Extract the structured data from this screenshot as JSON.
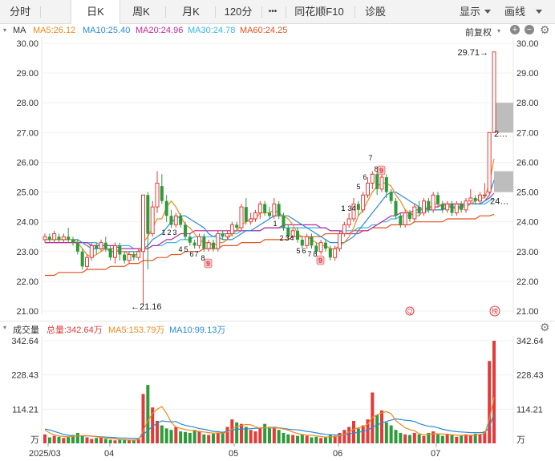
{
  "tabs": [
    {
      "label": "分时",
      "active": false
    },
    {
      "label": "日K",
      "active": true
    },
    {
      "label": "周K",
      "active": false
    },
    {
      "label": "月K",
      "active": false
    },
    {
      "label": "120分",
      "active": false
    },
    {
      "label": "•••",
      "active": false
    },
    {
      "label": "同花顺F10",
      "active": false
    },
    {
      "label": "诊股",
      "active": false
    }
  ],
  "right_tabs": {
    "display": "显示",
    "drawing": "画线"
  },
  "indicator": {
    "name": "MA",
    "ma5": "MA5:26.12",
    "ma10": "MA10:25.40",
    "ma20": "MA20:24.96",
    "ma30": "MA30:24.78",
    "ma60": "MA60:24.25",
    "adjust": "前复权"
  },
  "volume_header": {
    "name": "成交量",
    "total": "总量:342.64万",
    "ma5": "MA5:153.79万",
    "ma10": "MA10:99.13万"
  },
  "colors": {
    "up": "#e23b3b",
    "down": "#2e9a3a",
    "ma5": "#f08a1c",
    "ma10": "#2a8ad8",
    "ma20": "#c0279c",
    "ma30": "#35b7e8",
    "ma60": "#e0531d",
    "gap": "#bdbdbd"
  },
  "annotations": {
    "high": "29.71→",
    "low": "←21.16",
    "last_close": "2…",
    "last_low": "24…",
    "badge_q": "Q",
    "badge_bang": "榜",
    "badge_9": "9"
  },
  "seq_labels": [
    "1",
    "2",
    "3",
    "4",
    "5",
    "6",
    "7",
    "8",
    "9"
  ],
  "months": [
    "2025/03",
    "04",
    "05",
    "06",
    "07"
  ],
  "vol_unit": "万",
  "chart_data": {
    "type": "candlestick",
    "ylim": [
      21,
      30
    ],
    "yticks": [
      "30.00",
      "29.00",
      "28.00",
      "27.00",
      "26.00",
      "25.00",
      "24.00",
      "23.00",
      "22.00",
      "21.00"
    ],
    "vol_ticks": [
      "342.64",
      "228.43",
      "114.21"
    ],
    "candles": [
      [
        23.4,
        23.5,
        23.6,
        23.3
      ],
      [
        23.5,
        23.4,
        23.6,
        23.3
      ],
      [
        23.4,
        23.6,
        23.7,
        23.3
      ],
      [
        23.5,
        23.4,
        23.6,
        23.3
      ],
      [
        23.4,
        23.5,
        23.6,
        23.3
      ],
      [
        23.5,
        23.4,
        23.8,
        23.3
      ],
      [
        23.4,
        23.3,
        23.5,
        23.2
      ],
      [
        23.3,
        23.0,
        23.4,
        22.9
      ],
      [
        23.0,
        22.5,
        23.1,
        22.4
      ],
      [
        22.5,
        22.8,
        22.9,
        22.4
      ],
      [
        22.8,
        23.2,
        23.3,
        22.7
      ],
      [
        23.2,
        23.1,
        23.3,
        22.9
      ],
      [
        23.1,
        23.3,
        23.4,
        23.0
      ],
      [
        23.3,
        23.1,
        23.5,
        23.0
      ],
      [
        23.1,
        22.8,
        23.2,
        22.7
      ],
      [
        22.8,
        23.2,
        23.3,
        22.6
      ],
      [
        23.2,
        22.9,
        23.3,
        22.7
      ],
      [
        22.9,
        22.7,
        23.0,
        22.6
      ],
      [
        22.7,
        22.9,
        23.0,
        22.6
      ],
      [
        22.9,
        22.8,
        23.0,
        22.7
      ],
      [
        22.8,
        23.0,
        23.1,
        22.7
      ],
      [
        23.0,
        24.9,
        24.9,
        21.16
      ],
      [
        24.9,
        23.6,
        25.0,
        22.4
      ],
      [
        23.6,
        24.5,
        24.7,
        23.5
      ],
      [
        24.5,
        25.3,
        25.7,
        24.3
      ],
      [
        25.2,
        24.7,
        25.6,
        24.6
      ],
      [
        24.7,
        24.2,
        24.9,
        24.0
      ],
      [
        24.2,
        23.9,
        24.4,
        23.8
      ],
      [
        23.9,
        24.2,
        24.3,
        23.8
      ],
      [
        24.2,
        23.9,
        24.3,
        23.8
      ],
      [
        23.9,
        23.5,
        24.0,
        23.4
      ],
      [
        23.5,
        23.3,
        23.6,
        23.2
      ],
      [
        23.3,
        23.2,
        23.4,
        23.1
      ],
      [
        23.2,
        23.5,
        23.6,
        23.1
      ],
      [
        23.5,
        23.1,
        23.6,
        23.0
      ],
      [
        23.1,
        23.3,
        23.4,
        23.0
      ],
      [
        23.3,
        23.1,
        23.4,
        23.0
      ],
      [
        23.1,
        23.6,
        23.7,
        23.0
      ],
      [
        23.6,
        23.5,
        23.7,
        23.4
      ],
      [
        23.5,
        23.6,
        23.7,
        23.4
      ],
      [
        23.6,
        23.9,
        24.0,
        23.5
      ],
      [
        23.9,
        23.8,
        24.0,
        23.7
      ],
      [
        23.8,
        24.5,
        24.6,
        23.7
      ],
      [
        24.5,
        24.0,
        24.8,
        23.9
      ],
      [
        24.0,
        24.1,
        24.3,
        23.9
      ],
      [
        24.1,
        24.3,
        24.4,
        24.0
      ],
      [
        24.3,
        24.6,
        24.7,
        24.1
      ],
      [
        24.6,
        24.3,
        24.7,
        24.2
      ],
      [
        24.3,
        24.2,
        24.5,
        24.1
      ],
      [
        24.2,
        24.6,
        24.8,
        24.1
      ],
      [
        24.6,
        24.2,
        24.7,
        24.1
      ],
      [
        24.2,
        23.8,
        24.3,
        23.7
      ],
      [
        23.8,
        23.5,
        23.9,
        23.4
      ],
      [
        23.5,
        23.7,
        23.8,
        23.4
      ],
      [
        23.7,
        23.4,
        23.8,
        23.3
      ],
      [
        23.4,
        23.2,
        23.5,
        23.1
      ],
      [
        23.2,
        23.5,
        23.6,
        23.1
      ],
      [
        23.5,
        23.2,
        23.6,
        23.1
      ],
      [
        23.2,
        23.0,
        23.3,
        22.9
      ],
      [
        23.0,
        23.3,
        23.4,
        22.9
      ],
      [
        23.3,
        23.1,
        23.4,
        23.0
      ],
      [
        23.1,
        22.8,
        23.2,
        22.7
      ],
      [
        22.8,
        23.1,
        23.2,
        22.7
      ],
      [
        23.1,
        23.6,
        23.7,
        23.0
      ],
      [
        23.6,
        23.9,
        24.0,
        23.5
      ],
      [
        23.9,
        24.1,
        24.3,
        23.8
      ],
      [
        24.1,
        24.6,
        24.8,
        24.0
      ],
      [
        24.6,
        24.4,
        24.7,
        24.2
      ],
      [
        24.4,
        24.9,
        25.0,
        24.3
      ],
      [
        24.9,
        25.3,
        25.5,
        24.8
      ],
      [
        25.3,
        25.6,
        25.7,
        25.1
      ],
      [
        25.6,
        25.1,
        25.7,
        24.9
      ],
      [
        25.1,
        25.5,
        25.6,
        25.0
      ],
      [
        25.5,
        25.0,
        25.6,
        24.8
      ],
      [
        25.0,
        24.7,
        25.1,
        24.6
      ],
      [
        24.7,
        24.2,
        24.8,
        24.1
      ],
      [
        24.2,
        23.9,
        24.3,
        23.8
      ],
      [
        23.9,
        24.3,
        24.4,
        23.8
      ],
      [
        24.3,
        24.1,
        24.4,
        24.0
      ],
      [
        24.1,
        24.5,
        24.6,
        24.0
      ],
      [
        24.5,
        24.3,
        24.7,
        24.2
      ],
      [
        24.3,
        24.7,
        24.8,
        24.2
      ],
      [
        24.7,
        24.4,
        24.8,
        24.3
      ],
      [
        24.4,
        24.9,
        25.0,
        24.3
      ],
      [
        24.9,
        24.6,
        25.0,
        24.5
      ],
      [
        24.6,
        24.4,
        24.7,
        24.3
      ],
      [
        24.4,
        24.6,
        24.7,
        24.3
      ],
      [
        24.6,
        24.3,
        24.7,
        24.2
      ],
      [
        24.3,
        24.6,
        24.7,
        24.2
      ],
      [
        24.6,
        24.4,
        24.7,
        24.3
      ],
      [
        24.4,
        24.7,
        24.8,
        24.3
      ],
      [
        24.7,
        24.8,
        25.1,
        24.6
      ],
      [
        24.8,
        24.7,
        24.9,
        24.6
      ],
      [
        24.7,
        24.9,
        25.0,
        24.6
      ],
      [
        24.9,
        24.9,
        25.3,
        24.8
      ],
      [
        25.0,
        27.0,
        27.0,
        24.9
      ],
      [
        27.0,
        29.71,
        29.71,
        27.0
      ]
    ],
    "ma5": [
      23.4,
      23.4,
      23.4,
      23.4,
      23.4,
      23.4,
      23.4,
      23.3,
      23.1,
      22.9,
      22.8,
      22.9,
      23.0,
      23.1,
      23.1,
      23.1,
      23.0,
      23.0,
      22.9,
      22.9,
      22.9,
      23.3,
      23.5,
      23.8,
      24.1,
      24.1,
      24.5,
      24.7,
      24.5,
      24.2,
      23.9,
      23.8,
      23.6,
      23.4,
      23.3,
      23.3,
      23.2,
      23.3,
      23.3,
      23.4,
      23.6,
      23.7,
      23.9,
      24.0,
      24.1,
      24.1,
      24.3,
      24.3,
      24.3,
      24.4,
      24.3,
      24.2,
      24.1,
      23.9,
      23.6,
      23.5,
      23.5,
      23.4,
      23.3,
      23.2,
      23.2,
      23.1,
      23.1,
      23.2,
      23.3,
      23.5,
      23.8,
      24.2,
      24.4,
      24.7,
      25.0,
      25.2,
      25.3,
      25.3,
      25.2,
      24.9,
      24.7,
      24.4,
      24.3,
      24.2,
      24.2,
      24.4,
      24.4,
      24.6,
      24.6,
      24.5,
      24.6,
      24.5,
      24.4,
      24.5,
      24.5,
      24.6,
      24.7,
      24.8,
      24.8,
      25.3,
      26.12
    ],
    "ma10": [
      23.4,
      23.4,
      23.4,
      23.4,
      23.4,
      23.4,
      23.4,
      23.4,
      23.3,
      23.2,
      23.1,
      23.1,
      23.1,
      23.1,
      23.0,
      23.0,
      23.0,
      23.0,
      23.0,
      23.0,
      23.0,
      23.1,
      23.2,
      23.4,
      23.5,
      23.6,
      23.8,
      24.0,
      24.1,
      24.2,
      24.2,
      24.1,
      24.0,
      23.9,
      23.8,
      23.6,
      23.5,
      23.5,
      23.4,
      23.4,
      23.4,
      23.5,
      23.6,
      23.7,
      23.7,
      23.8,
      23.9,
      24.0,
      24.1,
      24.2,
      24.2,
      24.2,
      24.2,
      24.1,
      24.0,
      23.9,
      23.8,
      23.7,
      23.6,
      23.5,
      23.4,
      23.3,
      23.3,
      23.3,
      23.3,
      23.4,
      23.5,
      23.7,
      23.9,
      24.1,
      24.3,
      24.5,
      24.7,
      24.9,
      25.0,
      25.0,
      24.9,
      24.8,
      24.7,
      24.6,
      24.5,
      24.4,
      24.4,
      24.4,
      24.4,
      24.4,
      24.5,
      24.5,
      24.5,
      24.5,
      24.6,
      24.6,
      24.6,
      24.6,
      24.7,
      24.9,
      25.4
    ],
    "ma20": [
      23.3,
      23.3,
      23.3,
      23.3,
      23.3,
      23.3,
      23.3,
      23.3,
      23.3,
      23.3,
      23.2,
      23.2,
      23.2,
      23.2,
      23.2,
      23.2,
      23.1,
      23.1,
      23.1,
      23.1,
      23.1,
      23.1,
      23.1,
      23.2,
      23.2,
      23.3,
      23.4,
      23.4,
      23.5,
      23.6,
      23.6,
      23.6,
      23.7,
      23.7,
      23.7,
      23.7,
      23.7,
      23.7,
      23.7,
      23.7,
      23.7,
      23.7,
      23.7,
      23.7,
      23.7,
      23.7,
      23.7,
      23.8,
      23.8,
      23.8,
      23.8,
      23.9,
      23.9,
      23.9,
      23.9,
      23.9,
      23.9,
      23.9,
      23.9,
      23.8,
      23.8,
      23.7,
      23.7,
      23.7,
      23.6,
      23.6,
      23.6,
      23.6,
      23.7,
      23.7,
      23.8,
      23.9,
      24.0,
      24.1,
      24.2,
      24.2,
      24.3,
      24.3,
      24.3,
      24.4,
      24.4,
      24.4,
      24.5,
      24.5,
      24.5,
      24.6,
      24.6,
      24.6,
      24.6,
      24.6,
      24.6,
      24.6,
      24.6,
      24.6,
      24.7,
      24.8,
      24.96
    ],
    "ma30": [
      23.3,
      23.3,
      23.3,
      23.3,
      23.3,
      23.3,
      23.3,
      23.3,
      23.3,
      23.3,
      23.3,
      23.3,
      23.2,
      23.2,
      23.2,
      23.2,
      23.2,
      23.2,
      23.2,
      23.1,
      23.1,
      23.1,
      23.1,
      23.2,
      23.2,
      23.2,
      23.3,
      23.3,
      23.3,
      23.4,
      23.4,
      23.4,
      23.5,
      23.5,
      23.5,
      23.5,
      23.5,
      23.6,
      23.6,
      23.6,
      23.6,
      23.6,
      23.7,
      23.7,
      23.7,
      23.7,
      23.7,
      23.8,
      23.8,
      23.8,
      23.8,
      23.8,
      23.8,
      23.8,
      23.8,
      23.8,
      23.8,
      23.8,
      23.8,
      23.8,
      23.8,
      23.7,
      23.7,
      23.7,
      23.7,
      23.7,
      23.7,
      23.8,
      23.8,
      23.8,
      23.9,
      23.9,
      24.0,
      24.0,
      24.1,
      24.1,
      24.2,
      24.2,
      24.2,
      24.3,
      24.3,
      24.3,
      24.4,
      24.4,
      24.4,
      24.4,
      24.5,
      24.5,
      24.5,
      24.5,
      24.5,
      24.6,
      24.6,
      24.6,
      24.6,
      24.7,
      24.78
    ],
    "ma60": [
      22.2,
      22.2,
      22.2,
      22.3,
      22.3,
      22.3,
      22.3,
      22.3,
      22.3,
      22.4,
      22.4,
      22.4,
      22.4,
      22.4,
      22.5,
      22.5,
      22.5,
      22.5,
      22.6,
      22.6,
      22.6,
      22.7,
      22.7,
      22.7,
      22.8,
      22.8,
      22.8,
      22.9,
      22.9,
      22.9,
      23.0,
      23.0,
      23.0,
      23.0,
      23.1,
      23.1,
      23.1,
      23.1,
      23.2,
      23.2,
      23.2,
      23.2,
      23.3,
      23.3,
      23.3,
      23.3,
      23.3,
      23.4,
      23.4,
      23.4,
      23.4,
      23.4,
      23.4,
      23.5,
      23.5,
      23.5,
      23.5,
      23.5,
      23.5,
      23.5,
      23.6,
      23.6,
      23.6,
      23.6,
      23.6,
      23.6,
      23.7,
      23.7,
      23.7,
      23.7,
      23.8,
      23.8,
      23.8,
      23.8,
      23.9,
      23.9,
      23.9,
      23.9,
      23.9,
      24.0,
      24.0,
      24.0,
      24.0,
      24.0,
      24.0,
      24.0,
      24.1,
      24.1,
      24.1,
      24.1,
      24.1,
      24.1,
      24.1,
      24.2,
      24.2,
      24.2,
      24.25
    ],
    "volume": [
      30,
      20,
      25,
      22,
      18,
      22,
      28,
      35,
      25,
      20,
      15,
      18,
      22,
      15,
      12,
      10,
      12,
      14,
      10,
      12,
      15,
      165,
      195,
      120,
      75,
      60,
      50,
      45,
      55,
      40,
      38,
      35,
      45,
      40,
      30,
      28,
      32,
      35,
      38,
      55,
      80,
      70,
      65,
      55,
      45,
      40,
      50,
      65,
      55,
      50,
      45,
      35,
      30,
      28,
      25,
      30,
      25,
      20,
      22,
      18,
      20,
      28,
      25,
      35,
      45,
      55,
      75,
      50,
      60,
      80,
      170,
      95,
      110,
      70,
      60,
      45,
      35,
      30,
      28,
      35,
      30,
      25,
      35,
      40,
      30,
      25,
      32,
      28,
      22,
      25,
      30,
      28,
      32,
      30,
      40,
      275,
      342.64
    ],
    "vol_ma5": [
      45,
      35,
      28,
      25,
      23,
      22,
      23,
      25,
      26,
      26,
      24,
      22,
      20,
      18,
      17,
      15,
      13,
      12,
      11,
      11,
      12,
      42,
      75,
      100,
      114,
      123,
      100,
      70,
      55,
      50,
      46,
      44,
      42,
      40,
      38,
      36,
      34,
      35,
      34,
      38,
      48,
      56,
      60,
      63,
      62,
      55,
      51,
      52,
      52,
      51,
      51,
      48,
      44,
      38,
      33,
      30,
      27,
      27,
      25,
      23,
      21,
      22,
      22,
      25,
      30,
      38,
      47,
      52,
      56,
      64,
      87,
      95,
      102,
      106,
      99,
      76,
      64,
      52,
      46,
      42,
      32,
      29,
      30,
      32,
      32,
      31,
      30,
      29,
      27,
      27,
      27,
      27,
      27,
      30,
      32,
      81,
      153.79
    ],
    "vol_ma10": [
      48,
      45,
      40,
      35,
      30,
      27,
      25,
      25,
      25,
      25,
      24,
      23,
      22,
      21,
      20,
      19,
      18,
      18,
      17,
      17,
      16,
      29,
      43,
      57,
      67,
      75,
      73,
      72,
      73,
      65,
      60,
      57,
      54,
      49,
      47,
      44,
      40,
      39,
      37,
      41,
      44,
      47,
      48,
      48,
      49,
      50,
      51,
      52,
      52,
      54,
      52,
      50,
      47,
      46,
      45,
      43,
      40,
      38,
      35,
      32,
      30,
      29,
      28,
      28,
      29,
      31,
      34,
      37,
      40,
      44,
      54,
      61,
      68,
      73,
      78,
      82,
      80,
      77,
      76,
      73,
      66,
      61,
      57,
      56,
      52,
      47,
      44,
      41,
      39,
      38,
      37,
      36,
      36,
      36,
      37,
      54,
      99.13
    ]
  }
}
